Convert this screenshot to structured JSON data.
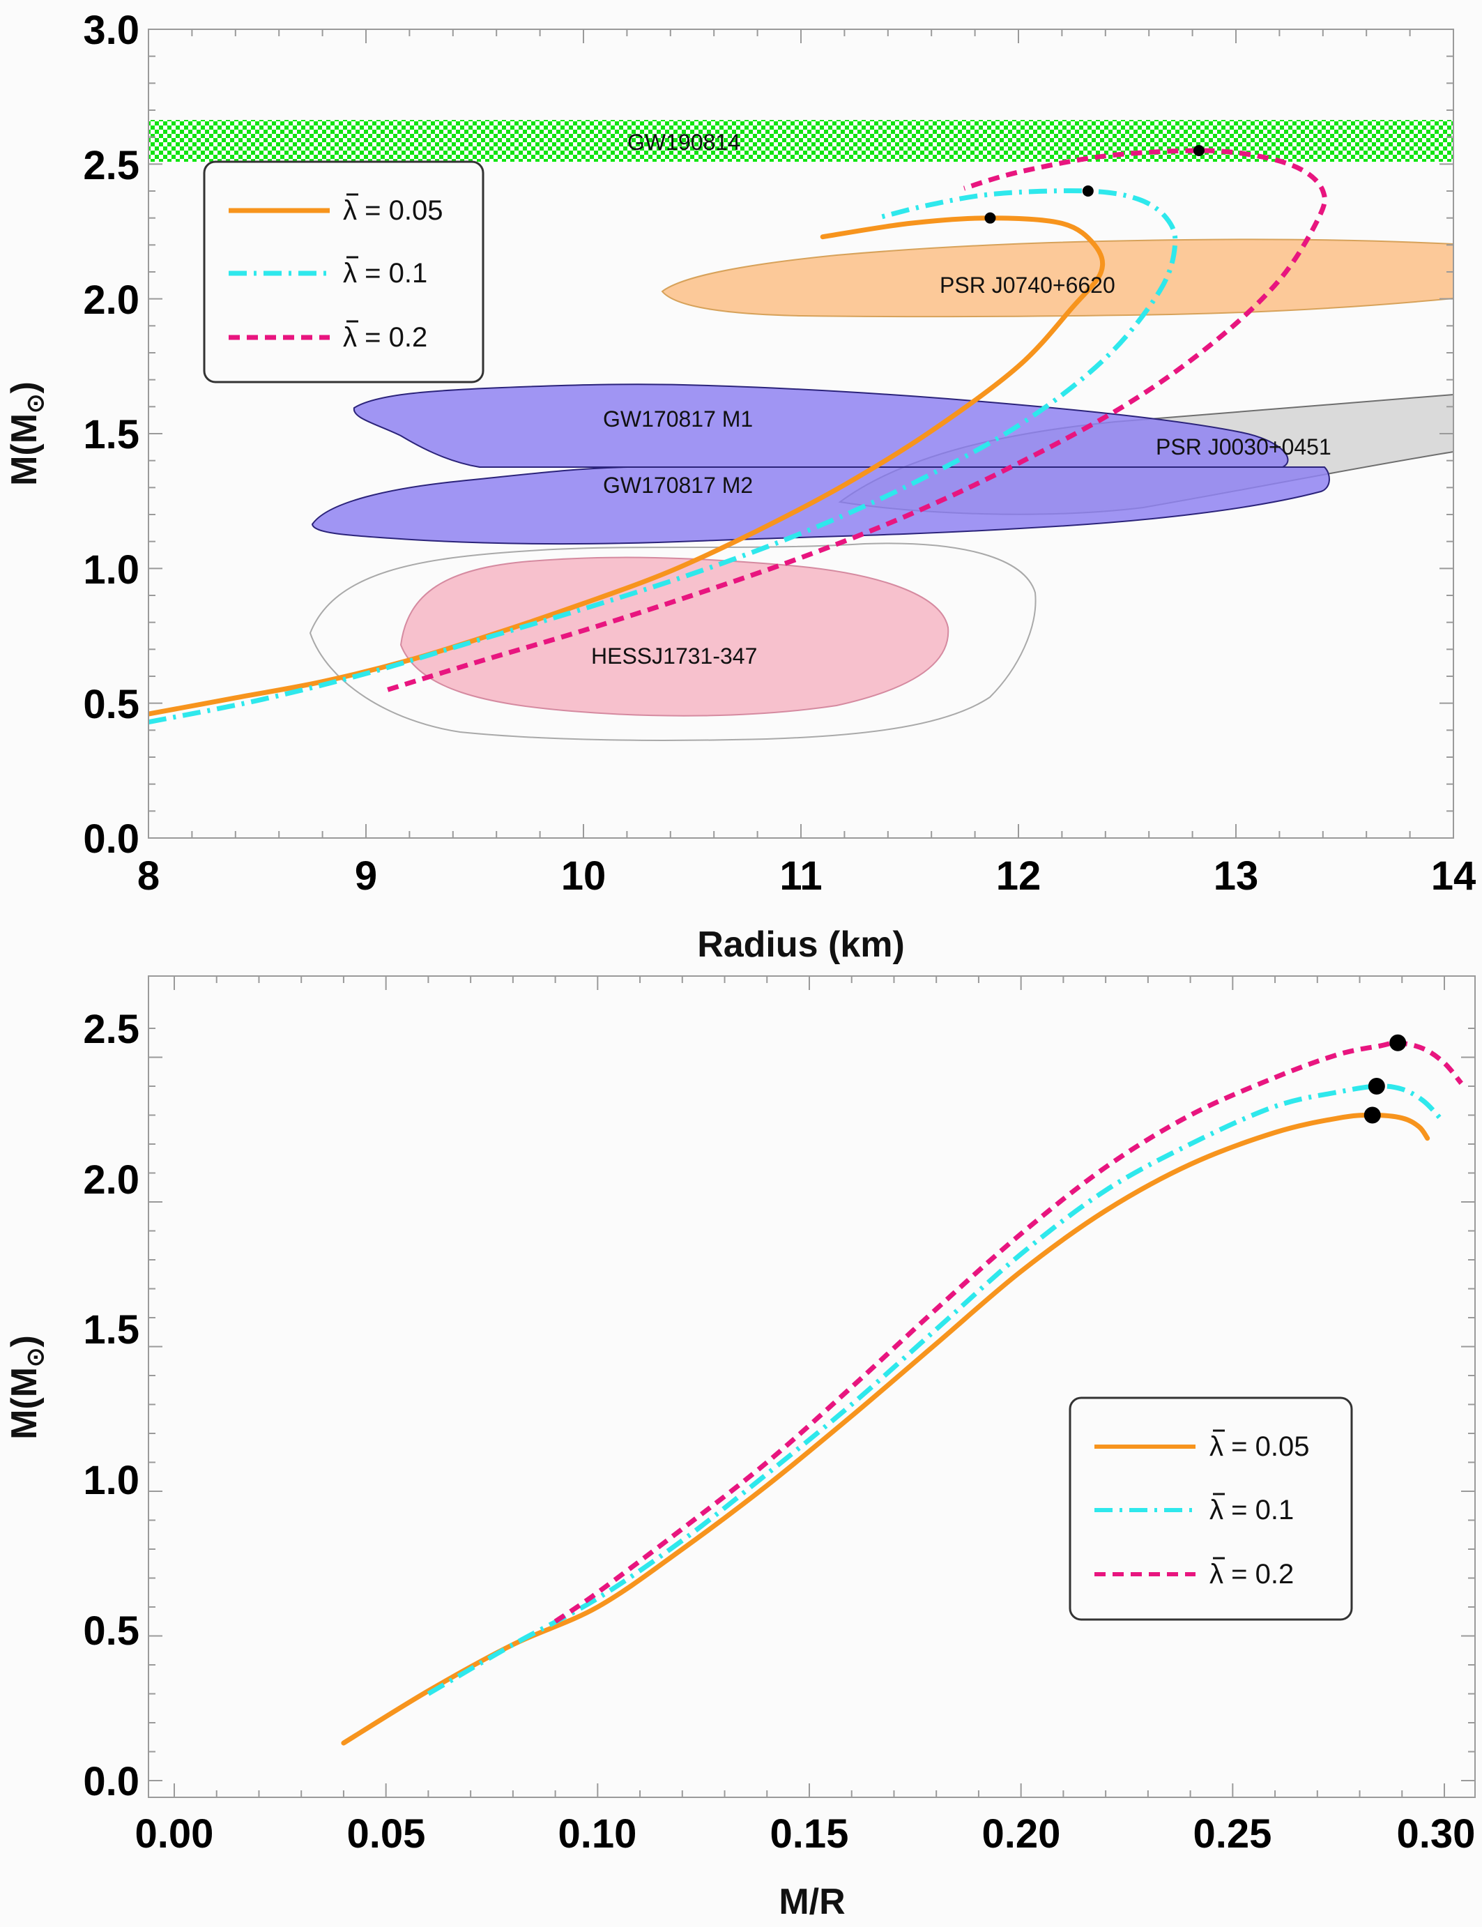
{
  "colors": {
    "background": "#fbfbfb",
    "lambda_005": "#f7941d",
    "lambda_01": "#2ee8ec",
    "lambda_02": "#e8157f",
    "gw190814": "#11e411",
    "psr_j0740": "#fcc999",
    "gw170817": "#8f83f1",
    "psr_j0030": "#dadada",
    "hess": "#f7c1cd"
  },
  "chart_data": [
    {
      "type": "line",
      "xlabel": "Radius (km)",
      "ylabel": "M(M",
      "ylabel_sub": "⊙",
      "ylabel_close": ")",
      "xlim": [
        8,
        14
      ],
      "ylim": [
        0,
        3.0
      ],
      "xticks": [
        "8",
        "9",
        "10",
        "11",
        "12",
        "13",
        "14"
      ],
      "yticks": [
        "0.0",
        "0.5",
        "1.0",
        "1.5",
        "2.0",
        "2.5",
        "3.0"
      ],
      "grid": false,
      "legend_position": "top-left",
      "regions": [
        {
          "label": "GW190814",
          "m_range": [
            2.5,
            2.67
          ]
        },
        {
          "label": "PSR J0740+6620",
          "r_range": [
            10.35,
            14.0
          ],
          "m_range": [
            1.95,
            2.2
          ]
        },
        {
          "label": "GW170817 M1",
          "r_range": [
            9.0,
            13.3
          ],
          "m_range": [
            1.35,
            1.7
          ]
        },
        {
          "label": "GW170817 M2",
          "r_range": [
            8.75,
            13.4
          ],
          "m_range": [
            1.1,
            1.4
          ]
        },
        {
          "label": "PSR J0030+0451",
          "r_range": [
            11.2,
            14.0
          ],
          "m_range": [
            1.2,
            1.65
          ]
        },
        {
          "label": "HESSJ1731-347",
          "r_range": [
            8.75,
            11.9
          ],
          "m_range": [
            0.35,
            1.1
          ]
        }
      ],
      "series": [
        {
          "name": "λ = 0.05",
          "x": [
            8.0,
            8.4,
            8.8,
            9.2,
            9.6,
            10.0,
            10.4,
            10.8,
            11.2,
            11.6,
            12.0,
            12.25,
            12.38,
            12.35,
            12.2,
            11.87,
            11.5,
            11.1
          ],
          "y": [
            0.46,
            0.52,
            0.58,
            0.66,
            0.76,
            0.87,
            0.99,
            1.14,
            1.31,
            1.51,
            1.75,
            1.97,
            2.1,
            2.2,
            2.28,
            2.3,
            2.28,
            2.23
          ],
          "max_point": [
            11.87,
            2.3
          ]
        },
        {
          "name": "λ = 0.1",
          "x": [
            8.0,
            8.5,
            9.0,
            9.5,
            10.0,
            10.5,
            11.0,
            11.5,
            12.0,
            12.4,
            12.65,
            12.72,
            12.68,
            12.55,
            12.32,
            11.9,
            11.6,
            11.35
          ],
          "y": [
            0.43,
            0.51,
            0.61,
            0.73,
            0.85,
            0.98,
            1.13,
            1.31,
            1.53,
            1.78,
            2.03,
            2.2,
            2.3,
            2.37,
            2.4,
            2.39,
            2.35,
            2.3
          ],
          "max_point": [
            12.32,
            2.4
          ]
        },
        {
          "name": "λ = 0.2",
          "x": [
            9.1,
            9.5,
            10.0,
            10.5,
            11.0,
            11.5,
            12.0,
            12.5,
            12.9,
            13.2,
            13.38,
            13.4,
            13.3,
            13.1,
            12.83,
            12.4,
            12.0,
            11.75
          ],
          "y": [
            0.55,
            0.65,
            0.77,
            0.9,
            1.04,
            1.2,
            1.39,
            1.61,
            1.84,
            2.07,
            2.3,
            2.4,
            2.48,
            2.53,
            2.55,
            2.53,
            2.47,
            2.41
          ],
          "max_point": [
            12.83,
            2.55
          ]
        }
      ]
    },
    {
      "type": "line",
      "xlabel": "M/R",
      "ylabel": "M(M",
      "ylabel_sub": "⊙",
      "ylabel_close": ")",
      "xlim": [
        0,
        0.3
      ],
      "ylim": [
        0,
        2.6
      ],
      "xticks": [
        "0.00",
        "0.05",
        "0.10",
        "0.15",
        "0.20",
        "0.25",
        "0.30"
      ],
      "yticks": [
        "0.0",
        "0.5",
        "1.0",
        "1.5",
        "2.0",
        "2.5"
      ],
      "grid": false,
      "legend_position": "bottom-right",
      "series": [
        {
          "name": "λ = 0.05",
          "x": [
            0.04,
            0.06,
            0.08,
            0.1,
            0.12,
            0.14,
            0.16,
            0.18,
            0.2,
            0.22,
            0.24,
            0.26,
            0.275,
            0.283,
            0.29,
            0.294,
            0.296
          ],
          "y": [
            0.13,
            0.31,
            0.47,
            0.6,
            0.8,
            1.02,
            1.26,
            1.51,
            1.76,
            1.97,
            2.13,
            2.24,
            2.29,
            2.3,
            2.29,
            2.26,
            2.22
          ],
          "max_point": [
            0.283,
            2.3
          ]
        },
        {
          "name": "λ = 0.1",
          "x": [
            0.06,
            0.08,
            0.1,
            0.12,
            0.14,
            0.16,
            0.18,
            0.2,
            0.22,
            0.24,
            0.26,
            0.275,
            0.284,
            0.29,
            0.295,
            0.299
          ],
          "y": [
            0.3,
            0.47,
            0.63,
            0.83,
            1.06,
            1.3,
            1.56,
            1.82,
            2.04,
            2.2,
            2.33,
            2.38,
            2.4,
            2.39,
            2.35,
            2.29
          ],
          "max_point": [
            0.284,
            2.4
          ]
        },
        {
          "name": "λ = 0.2",
          "x": [
            0.09,
            0.1,
            0.12,
            0.14,
            0.16,
            0.18,
            0.2,
            0.22,
            0.24,
            0.26,
            0.275,
            0.285,
            0.289,
            0.295,
            0.3,
            0.304
          ],
          "y": [
            0.55,
            0.65,
            0.87,
            1.1,
            1.36,
            1.63,
            1.89,
            2.12,
            2.3,
            2.43,
            2.51,
            2.54,
            2.55,
            2.53,
            2.48,
            2.41
          ],
          "max_point": [
            0.289,
            2.55
          ]
        }
      ]
    }
  ]
}
